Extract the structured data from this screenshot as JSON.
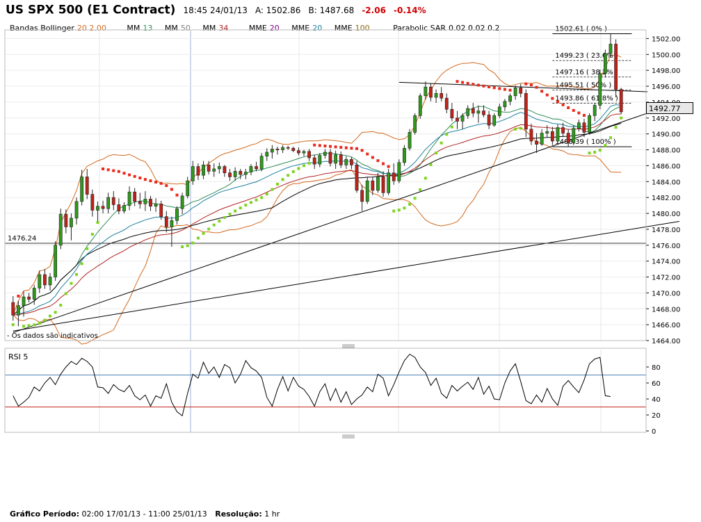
{
  "header": {
    "title": "US SPX 500 (E1 Contract)",
    "time": "18:45 24/01/13",
    "ask": "A: 1502.86",
    "bid": "B: 1487.68",
    "change": "-2.06",
    "change_pct": "-0.14%"
  },
  "indicators": {
    "bb_label": "Bandas Bollinger",
    "bb_params": "20 2.00",
    "mm1_label": "MM",
    "mm1_val": "13",
    "mm2_label": "MM",
    "mm2_val": "50",
    "mm3_label": "MM",
    "mm3_val": "34",
    "mme1_label": "MME",
    "mme1_val": "20",
    "mme2_label": "MME",
    "mme2_val": "20",
    "mme3_label": "MME",
    "mme3_val": "100",
    "sar_label": "Parabolic SAR",
    "sar_params": "0.02 0.02 0.2"
  },
  "colors": {
    "bull": "#2e9a1a",
    "bear": "#c0221a",
    "sar_up": "#7ed321",
    "sar_down": "#e8291c",
    "bb": "#d2691e",
    "mm13": "#2e8b57",
    "mm50": "#808080",
    "mm34": "#b22222",
    "mme_purple": "#800080",
    "mme_teal": "#1f7fa0",
    "mme_olive": "#8b6914",
    "rsi_ref": "#4a7fb5"
  },
  "note": "- Os dados são indicativos",
  "current_price": "1492.77",
  "footer": {
    "period_label": "Gráfico Período:",
    "period": "02:00 17/01/13 - 11:00 25/01/13",
    "res_label": "Resolução:",
    "res": "1 hr"
  },
  "chart_data": [
    {
      "type": "candlestick",
      "title": "US SPX 500 (E1 Contract)",
      "ylim": [
        1464,
        1503
      ],
      "yticks": [
        1464,
        1466,
        1468,
        1470,
        1472,
        1474,
        1476,
        1478,
        1480,
        1482,
        1484,
        1486,
        1488,
        1490,
        1492,
        1494,
        1496,
        1498,
        1500,
        1502
      ],
      "candles": [
        [
          1468.8,
          1469.6,
          1466.5,
          1467.2
        ],
        [
          1467.2,
          1469.0,
          1465.8,
          1468.4
        ],
        [
          1468.4,
          1470.2,
          1467.0,
          1469.5
        ],
        [
          1469.5,
          1470.0,
          1468.8,
          1469.2
        ],
        [
          1469.2,
          1471.0,
          1468.5,
          1470.6
        ],
        [
          1470.6,
          1472.8,
          1470.0,
          1472.3
        ],
        [
          1472.3,
          1473.0,
          1470.5,
          1471.0
        ],
        [
          1471.0,
          1472.5,
          1470.3,
          1472.0
        ],
        [
          1472.0,
          1476.5,
          1471.5,
          1476.0
        ],
        [
          1476.0,
          1480.6,
          1475.5,
          1479.9
        ],
        [
          1479.9,
          1480.5,
          1477.5,
          1478.3
        ],
        [
          1478.3,
          1480.0,
          1476.6,
          1479.4
        ],
        [
          1479.4,
          1482.0,
          1478.6,
          1481.5
        ],
        [
          1481.5,
          1485.5,
          1481.0,
          1484.6
        ],
        [
          1484.6,
          1485.6,
          1481.8,
          1482.4
        ],
        [
          1482.4,
          1483.0,
          1479.6,
          1480.4
        ],
        [
          1480.4,
          1481.5,
          1479.0,
          1480.9
        ],
        [
          1480.9,
          1481.6,
          1480.0,
          1480.6
        ],
        [
          1480.6,
          1482.6,
          1480.0,
          1482.0
        ],
        [
          1482.0,
          1482.8,
          1480.4,
          1481.1
        ],
        [
          1481.1,
          1481.9,
          1479.9,
          1480.3
        ],
        [
          1480.3,
          1481.4,
          1480.0,
          1481.0
        ],
        [
          1481.0,
          1483.4,
          1480.4,
          1482.7
        ],
        [
          1482.7,
          1483.2,
          1480.9,
          1481.5
        ],
        [
          1481.5,
          1482.6,
          1480.6,
          1481.2
        ],
        [
          1481.2,
          1482.8,
          1480.3,
          1481.8
        ],
        [
          1481.8,
          1482.2,
          1480.3,
          1480.9
        ],
        [
          1480.9,
          1481.9,
          1480.2,
          1481.2
        ],
        [
          1481.2,
          1481.6,
          1479.2,
          1479.6
        ],
        [
          1479.6,
          1480.3,
          1477.6,
          1478.3
        ],
        [
          1478.3,
          1479.6,
          1475.8,
          1479.1
        ],
        [
          1479.1,
          1480.9,
          1478.6,
          1480.6
        ],
        [
          1480.6,
          1482.6,
          1479.9,
          1482.2
        ],
        [
          1482.2,
          1484.6,
          1481.9,
          1484.1
        ],
        [
          1484.1,
          1486.6,
          1483.6,
          1485.9
        ],
        [
          1485.9,
          1486.3,
          1484.2,
          1484.8
        ],
        [
          1484.8,
          1486.6,
          1484.3,
          1486.1
        ],
        [
          1486.1,
          1486.6,
          1484.9,
          1485.3
        ],
        [
          1485.3,
          1486.3,
          1484.6,
          1485.6
        ],
        [
          1485.6,
          1486.4,
          1485.0,
          1485.9
        ],
        [
          1485.9,
          1486.1,
          1484.6,
          1485.1
        ],
        [
          1485.1,
          1485.6,
          1484.1,
          1484.6
        ],
        [
          1484.6,
          1485.8,
          1484.1,
          1485.3
        ],
        [
          1485.3,
          1485.6,
          1484.3,
          1484.9
        ],
        [
          1484.9,
          1485.6,
          1484.3,
          1485.2
        ],
        [
          1485.2,
          1486.2,
          1484.8,
          1485.9
        ],
        [
          1485.9,
          1486.5,
          1485.3,
          1485.6
        ],
        [
          1485.6,
          1487.6,
          1485.3,
          1487.2
        ],
        [
          1487.2,
          1488.2,
          1486.6,
          1487.7
        ],
        [
          1487.7,
          1488.6,
          1486.9,
          1488.1
        ],
        [
          1488.1,
          1488.4,
          1487.4,
          1488.0
        ],
        [
          1488.0,
          1488.6,
          1487.6,
          1488.3
        ],
        [
          1488.3,
          1488.5,
          1488.0,
          1488.2
        ],
        [
          1488.2,
          1488.4,
          1487.7,
          1487.9
        ],
        [
          1487.9,
          1488.3,
          1487.3,
          1487.6
        ],
        [
          1487.6,
          1488.0,
          1487.2,
          1487.8
        ],
        [
          1487.8,
          1488.1,
          1486.6,
          1487.0
        ],
        [
          1487.0,
          1487.4,
          1485.6,
          1486.2
        ],
        [
          1486.2,
          1487.6,
          1485.8,
          1487.3
        ],
        [
          1487.3,
          1488.1,
          1486.9,
          1487.7
        ],
        [
          1487.7,
          1488.1,
          1485.9,
          1486.3
        ],
        [
          1486.3,
          1487.9,
          1485.6,
          1487.4
        ],
        [
          1487.4,
          1487.8,
          1485.7,
          1486.1
        ],
        [
          1486.1,
          1487.2,
          1485.6,
          1486.8
        ],
        [
          1486.8,
          1487.1,
          1485.6,
          1486.1
        ],
        [
          1486.1,
          1486.6,
          1482.6,
          1482.9
        ],
        [
          1482.9,
          1483.6,
          1480.3,
          1481.5
        ],
        [
          1481.5,
          1484.6,
          1481.2,
          1484.1
        ],
        [
          1484.1,
          1484.6,
          1482.3,
          1482.9
        ],
        [
          1482.9,
          1485.1,
          1482.6,
          1484.6
        ],
        [
          1484.6,
          1485.3,
          1482.1,
          1482.6
        ],
        [
          1482.6,
          1485.6,
          1482.3,
          1485.1
        ],
        [
          1485.1,
          1486.3,
          1483.6,
          1484.1
        ],
        [
          1484.1,
          1486.8,
          1483.8,
          1486.4
        ],
        [
          1486.4,
          1488.6,
          1486.0,
          1488.2
        ],
        [
          1488.2,
          1490.6,
          1487.9,
          1490.2
        ],
        [
          1490.2,
          1492.6,
          1489.9,
          1492.3
        ],
        [
          1492.3,
          1495.1,
          1491.9,
          1494.8
        ],
        [
          1494.8,
          1496.6,
          1494.3,
          1495.9
        ],
        [
          1495.9,
          1496.3,
          1494.1,
          1494.6
        ],
        [
          1494.6,
          1495.6,
          1493.9,
          1495.1
        ],
        [
          1495.1,
          1495.9,
          1494.1,
          1494.5
        ],
        [
          1494.5,
          1495.1,
          1492.6,
          1493.1
        ],
        [
          1493.1,
          1493.9,
          1491.6,
          1492.0
        ],
        [
          1492.0,
          1492.9,
          1490.6,
          1491.6
        ],
        [
          1491.6,
          1492.6,
          1490.6,
          1492.3
        ],
        [
          1492.3,
          1493.6,
          1491.9,
          1493.2
        ],
        [
          1493.2,
          1493.9,
          1492.1,
          1492.6
        ],
        [
          1492.6,
          1493.6,
          1491.4,
          1492.9
        ],
        [
          1492.9,
          1493.6,
          1492.1,
          1492.4
        ],
        [
          1492.4,
          1492.9,
          1490.6,
          1491.1
        ],
        [
          1491.1,
          1492.6,
          1490.9,
          1492.3
        ],
        [
          1492.3,
          1493.8,
          1492.0,
          1493.4
        ],
        [
          1493.4,
          1494.4,
          1492.9,
          1494.1
        ],
        [
          1494.1,
          1495.1,
          1493.6,
          1494.8
        ],
        [
          1494.8,
          1496.1,
          1494.3,
          1495.8
        ],
        [
          1495.8,
          1496.3,
          1494.6,
          1495.1
        ],
        [
          1495.1,
          1495.6,
          1489.6,
          1490.6
        ],
        [
          1490.6,
          1491.3,
          1488.6,
          1489.1
        ],
        [
          1489.1,
          1490.1,
          1487.6,
          1488.7
        ],
        [
          1488.7,
          1490.6,
          1488.5,
          1490.1
        ],
        [
          1490.1,
          1491.1,
          1489.6,
          1490.3
        ],
        [
          1490.3,
          1490.9,
          1488.6,
          1489.1
        ],
        [
          1489.1,
          1491.2,
          1488.9,
          1490.8
        ],
        [
          1490.8,
          1491.4,
          1489.6,
          1490.1
        ],
        [
          1490.1,
          1490.6,
          1488.4,
          1488.9
        ],
        [
          1488.9,
          1491.1,
          1488.6,
          1490.7
        ],
        [
          1490.7,
          1491.8,
          1490.3,
          1491.4
        ],
        [
          1491.4,
          1491.9,
          1489.6,
          1490.2
        ],
        [
          1490.2,
          1492.6,
          1489.9,
          1492.3
        ],
        [
          1492.3,
          1493.9,
          1491.6,
          1493.6
        ],
        [
          1493.6,
          1498.1,
          1493.1,
          1497.6
        ],
        [
          1497.6,
          1500.6,
          1497.1,
          1500.1
        ],
        [
          1500.1,
          1502.6,
          1499.6,
          1501.3
        ],
        [
          1501.3,
          1501.9,
          1494.6,
          1495.6
        ],
        [
          1495.6,
          1495.8,
          1492.5,
          1492.77
        ]
      ],
      "fibonacci": [
        {
          "label": "1502.61 ( 0% )",
          "value": 1502.61
        },
        {
          "label": "1499.23 ( 23.6% )",
          "value": 1499.23
        },
        {
          "label": "1497.16 ( 38.2% )",
          "value": 1497.16
        },
        {
          "label": "1495.51 ( 50% )",
          "value": 1495.51
        },
        {
          "label": "1493.86 ( 61.8% )",
          "value": 1493.86
        },
        {
          "label": "1488.39 ( 100% )",
          "value": 1488.39
        }
      ],
      "support_level": {
        "label": "1476.24",
        "value": 1476.24
      },
      "trendlines": [
        {
          "from": [
            0,
            1465.0
          ],
          "to": [
            126,
            1494.0
          ]
        },
        {
          "from": [
            0,
            1465.2
          ],
          "to": [
            126,
            1479.0
          ]
        },
        {
          "from": [
            73,
            1496.5
          ],
          "to": [
            120,
            1495.3
          ]
        }
      ]
    },
    {
      "type": "line",
      "title": "RSI 5",
      "ylim": [
        0,
        100
      ],
      "yticks": [
        0,
        20,
        40,
        60,
        80
      ],
      "reference_levels": [
        70,
        30
      ],
      "values": [
        44,
        31,
        36,
        42,
        55,
        50,
        60,
        67,
        58,
        71,
        80,
        87,
        83,
        91,
        87,
        80,
        55,
        54,
        47,
        58,
        52,
        49,
        57,
        44,
        39,
        45,
        31,
        44,
        41,
        59,
        36,
        24,
        19,
        47,
        71,
        66,
        86,
        72,
        80,
        67,
        83,
        79,
        60,
        71,
        88,
        79,
        75,
        67,
        42,
        31,
        52,
        68,
        50,
        67,
        56,
        52,
        43,
        31,
        49,
        59,
        38,
        53,
        36,
        49,
        33,
        40,
        45,
        55,
        49,
        71,
        66,
        44,
        58,
        74,
        88,
        96,
        92,
        80,
        73,
        57,
        66,
        47,
        41,
        57,
        50,
        56,
        61,
        52,
        67,
        46,
        56,
        40,
        39,
        60,
        75,
        84,
        62,
        38,
        34,
        45,
        36,
        53,
        40,
        32,
        56,
        63,
        55,
        48,
        64,
        84,
        90,
        92,
        44,
        43
      ]
    }
  ]
}
